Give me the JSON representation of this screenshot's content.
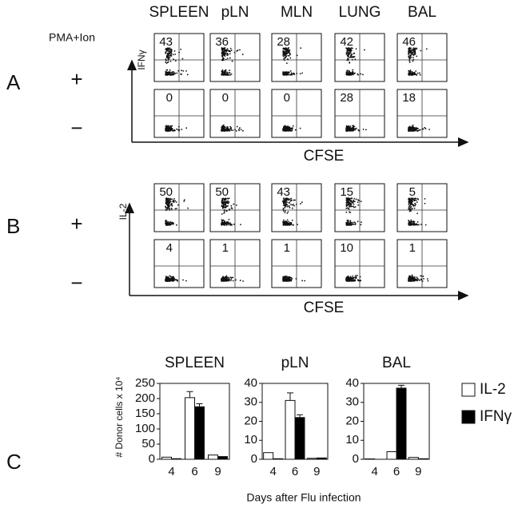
{
  "panel_labels": [
    "A",
    "B",
    "C"
  ],
  "columns": [
    "SPLEEN",
    "pLN",
    "MLN",
    "LUNG",
    "BAL"
  ],
  "stimulus_label": "PMA+Ion",
  "row_signs": [
    "+",
    "−",
    "+",
    "−"
  ],
  "y_labels": [
    "IFNγ",
    "IL-2"
  ],
  "x_labels": [
    "CFSE",
    "CFSE"
  ],
  "flow_rows": [
    [
      "43",
      "36",
      "28",
      "42",
      "46"
    ],
    [
      "0",
      "0",
      "0",
      "28",
      "18"
    ],
    [
      "50",
      "50",
      "43",
      "15",
      "5"
    ],
    [
      "4",
      "1",
      "1",
      "10",
      "1"
    ]
  ],
  "bar_ylabel": "# Donor cells x 10⁴",
  "bar_xlabel": "Days after Flu infection",
  "chart_data": [
    {
      "type": "bar",
      "title": "SPLEEN",
      "categories": [
        "4",
        "6",
        "9"
      ],
      "ylim": [
        0,
        250
      ],
      "yticks": [
        0,
        50,
        100,
        150,
        200,
        250
      ],
      "series": [
        {
          "color": "#ffffff",
          "values": [
            7,
            203,
            14
          ],
          "errors": [
            null,
            20,
            null
          ]
        },
        {
          "color": "#000000",
          "values": [
            2,
            173,
            9
          ],
          "errors": [
            null,
            10,
            null
          ]
        }
      ]
    },
    {
      "type": "bar",
      "title": "pLN",
      "categories": [
        "4",
        "6",
        "9"
      ],
      "ylim": [
        0,
        40
      ],
      "yticks": [
        0,
        10,
        20,
        30,
        40
      ],
      "series": [
        {
          "color": "#ffffff",
          "values": [
            3.5,
            31,
            0.5
          ],
          "errors": [
            null,
            4,
            null
          ]
        },
        {
          "color": "#000000",
          "values": [
            0.3,
            22,
            0.7
          ],
          "errors": [
            null,
            1.5,
            null
          ]
        }
      ]
    },
    {
      "type": "bar",
      "title": "BAL",
      "categories": [
        "4",
        "6",
        "9"
      ],
      "ylim": [
        0,
        40
      ],
      "yticks": [
        0,
        10,
        20,
        30,
        40
      ],
      "series": [
        {
          "name": "IL-2",
          "color": "#ffffff",
          "values": [
            0.2,
            4,
            1
          ],
          "errors": [
            null,
            null,
            null
          ]
        },
        {
          "name": "IFNγ",
          "color": "#000000",
          "values": [
            0,
            37.5,
            0.3
          ],
          "errors": [
            null,
            1.5,
            null
          ]
        }
      ]
    }
  ]
}
